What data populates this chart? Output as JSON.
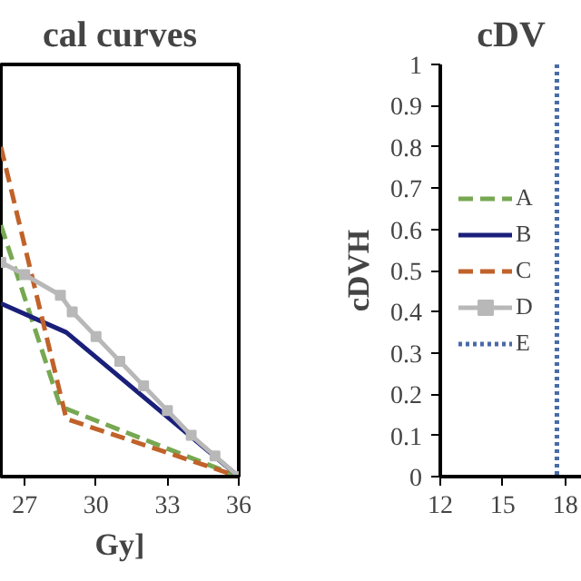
{
  "chart_data": [
    {
      "type": "line",
      "title": "cal curves",
      "xlabel": "Gy]",
      "xlim": [
        26,
        36
      ],
      "xticks": [
        27,
        30,
        33,
        36
      ],
      "ylim": [
        0,
        1
      ],
      "tick_labels": "x",
      "grid": false,
      "legend": false,
      "series": [
        {
          "color": "#77a852",
          "line_style": "dashed",
          "x": [
            26,
            28.5,
            36
          ],
          "values": [
            0.61,
            0.17,
            0
          ]
        },
        {
          "color": "#1a1f7a",
          "line_style": "solid",
          "x": [
            26,
            28.75,
            36
          ],
          "values": [
            0.42,
            0.35,
            0
          ]
        },
        {
          "color": "#c0622a",
          "line_style": "dashed",
          "x": [
            26,
            28.75,
            36
          ],
          "values": [
            0.8,
            0.14,
            0
          ]
        },
        {
          "color": "#b8b8b8",
          "line_style": "solid",
          "marker": "square",
          "x": [
            26,
            27,
            28.5,
            29,
            30,
            31,
            32,
            33,
            34,
            35,
            36
          ],
          "values": [
            0.52,
            0.49,
            0.44,
            0.4,
            0.34,
            0.28,
            0.22,
            0.16,
            0.1,
            0.05,
            0
          ]
        }
      ]
    },
    {
      "type": "line",
      "title": "cDV",
      "ylabel": "cDVH",
      "xlim": [
        12,
        18.8
      ],
      "xticks": [
        12,
        15,
        18
      ],
      "ylim": [
        0,
        1
      ],
      "yticks": [
        0,
        0.1,
        0.2,
        0.3,
        0.4,
        0.5,
        0.6,
        0.7,
        0.8,
        0.9,
        1
      ],
      "grid": false,
      "legend": "left",
      "series": [
        {
          "name": "A",
          "color": "#77a852",
          "line_style": "dashed"
        },
        {
          "name": "B",
          "color": "#1a1f7a",
          "line_style": "solid"
        },
        {
          "name": "C",
          "color": "#c0622a",
          "line_style": "dashed"
        },
        {
          "name": "D",
          "color": "#b8b8b8",
          "line_style": "solid",
          "marker": "square"
        },
        {
          "name": "E",
          "color": "#4a6aa8",
          "line_style": "dotted",
          "x": [
            17.6,
            17.6
          ],
          "values": [
            1,
            0
          ]
        }
      ]
    }
  ]
}
